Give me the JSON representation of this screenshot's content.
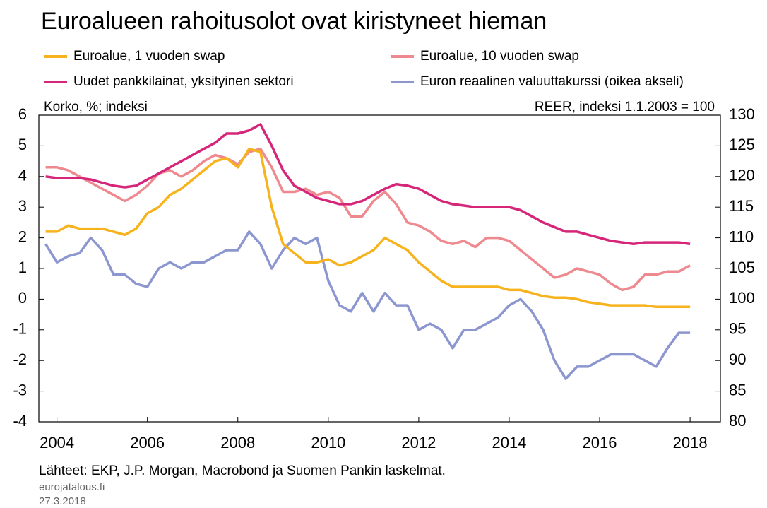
{
  "chart_data": {
    "type": "line",
    "title": "Euroalueen rahoitusolot ovat kiristyneet hieman",
    "y_label": "Korko, %; indeksi",
    "y2_label": "REER, indeksi 1.1.2003 = 100",
    "source": "Lähteet: EKP, J.P. Morgan, Macrobond ja Suomen Pankin laskelmat.",
    "site": "eurojatalous.fi",
    "date": "27.3.2018",
    "x": [
      2003.75,
      2004,
      2004.25,
      2004.5,
      2004.75,
      2005,
      2005.25,
      2005.5,
      2005.75,
      2006,
      2006.25,
      2006.5,
      2006.75,
      2007,
      2007.25,
      2007.5,
      2007.75,
      2008,
      2008.25,
      2008.5,
      2008.75,
      2009,
      2009.25,
      2009.5,
      2009.75,
      2010,
      2010.25,
      2010.5,
      2010.75,
      2011,
      2011.25,
      2011.5,
      2011.75,
      2012,
      2012.25,
      2012.5,
      2012.75,
      2013,
      2013.25,
      2013.5,
      2013.75,
      2014,
      2014.25,
      2014.5,
      2014.75,
      2015,
      2015.25,
      2015.5,
      2015.75,
      2016,
      2016.25,
      2016.5,
      2016.75,
      2017,
      2017.25,
      2017.5,
      2017.75,
      2018
    ],
    "xlim": [
      2003.6,
      2018.67
    ],
    "xticks": [
      2004,
      2006,
      2008,
      2010,
      2012,
      2014,
      2016,
      2018
    ],
    "ylim": [
      -4,
      6
    ],
    "yticks": [
      -4,
      -3,
      -2,
      -1,
      0,
      1,
      2,
      3,
      4,
      5,
      6
    ],
    "y2lim": [
      80,
      130
    ],
    "y2ticks": [
      80,
      85,
      90,
      95,
      100,
      105,
      110,
      115,
      120,
      125,
      130
    ],
    "series": [
      {
        "name": "Euroalue, 1 vuoden swap",
        "color": "#f7b31e",
        "values": [
          2.2,
          2.2,
          2.4,
          2.3,
          2.3,
          2.3,
          2.2,
          2.1,
          2.3,
          2.8,
          3.0,
          3.4,
          3.6,
          3.9,
          4.2,
          4.5,
          4.6,
          4.3,
          4.9,
          4.8,
          3.0,
          1.8,
          1.5,
          1.2,
          1.2,
          1.3,
          1.1,
          1.2,
          1.4,
          1.6,
          2.0,
          1.8,
          1.6,
          1.2,
          0.9,
          0.6,
          0.4,
          0.4,
          0.4,
          0.4,
          0.4,
          0.3,
          0.3,
          0.2,
          0.1,
          0.05,
          0.05,
          0.0,
          -0.1,
          -0.15,
          -0.2,
          -0.2,
          -0.2,
          -0.2,
          -0.25,
          -0.25,
          -0.25,
          -0.25
        ]
      },
      {
        "name": "Euroalue, 10 vuoden swap",
        "color": "#ee8a8f",
        "values": [
          4.3,
          4.3,
          4.2,
          4.0,
          3.8,
          3.6,
          3.4,
          3.2,
          3.4,
          3.7,
          4.1,
          4.2,
          4.0,
          4.2,
          4.5,
          4.7,
          4.6,
          4.4,
          4.8,
          4.9,
          4.3,
          3.5,
          3.5,
          3.6,
          3.4,
          3.5,
          3.3,
          2.7,
          2.7,
          3.2,
          3.5,
          3.1,
          2.5,
          2.4,
          2.2,
          1.9,
          1.8,
          1.9,
          1.7,
          2.0,
          2.0,
          1.9,
          1.6,
          1.3,
          1.0,
          0.7,
          0.8,
          1.0,
          0.9,
          0.8,
          0.5,
          0.3,
          0.4,
          0.8,
          0.8,
          0.9,
          0.9,
          1.1
        ]
      },
      {
        "name": "Uudet pankkilainat, yksityinen sektori",
        "color": "#d6267a",
        "values": [
          4.0,
          3.95,
          3.95,
          3.95,
          3.9,
          3.8,
          3.7,
          3.65,
          3.7,
          3.9,
          4.1,
          4.3,
          4.5,
          4.7,
          4.9,
          5.1,
          5.4,
          5.4,
          5.5,
          5.7,
          5.0,
          4.2,
          3.7,
          3.5,
          3.3,
          3.2,
          3.1,
          3.1,
          3.2,
          3.4,
          3.6,
          3.75,
          3.7,
          3.6,
          3.4,
          3.2,
          3.1,
          3.05,
          3.0,
          3.0,
          3.0,
          3.0,
          2.9,
          2.7,
          2.5,
          2.35,
          2.2,
          2.2,
          2.1,
          2.0,
          1.9,
          1.85,
          1.8,
          1.85,
          1.85,
          1.85,
          1.85,
          1.8
        ]
      },
      {
        "name": "Euron reaalinen valuuttakurssi (oikea akseli)",
        "color": "#8c96cf",
        "axis": "y2",
        "values": [
          109,
          106,
          107,
          107.5,
          110,
          108,
          104,
          104,
          102.5,
          102,
          105,
          106,
          105,
          106,
          106,
          107,
          108,
          108,
          111,
          109,
          105,
          108,
          110,
          109,
          110,
          103,
          99,
          98,
          101,
          98,
          101,
          99,
          99,
          95,
          96,
          95,
          92,
          95,
          95,
          96,
          97,
          99,
          100,
          98,
          95,
          90,
          87,
          89,
          89,
          90,
          91,
          91,
          91,
          90,
          89,
          92,
          94.5,
          94.5
        ]
      }
    ]
  }
}
